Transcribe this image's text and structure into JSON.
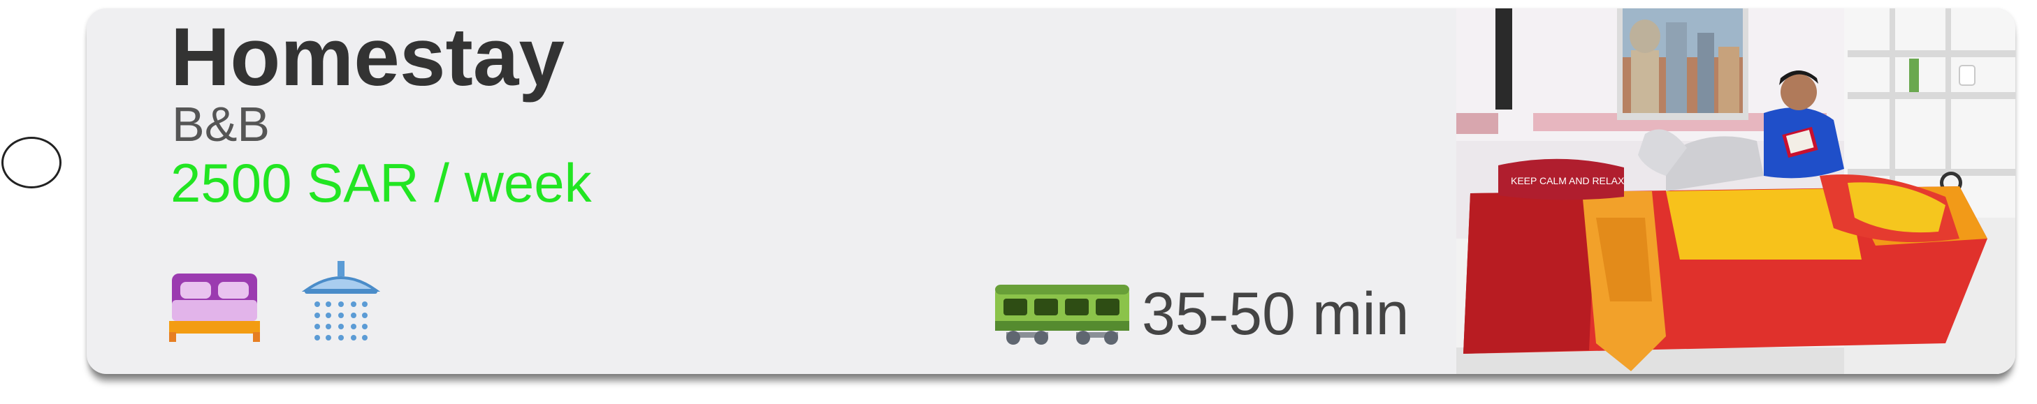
{
  "listing": {
    "title": "Homestay",
    "type": "B&B",
    "price": "2500 SAR / week",
    "commute": {
      "time": "35-50 min",
      "mode_icon": "train-icon"
    },
    "amenities": [
      {
        "icon": "bed-icon"
      },
      {
        "icon": "shower-icon"
      }
    ],
    "photo": {
      "icon": "room-photo",
      "pillow_text": "KEEP CALM AND RELAX"
    }
  },
  "colors": {
    "price": "#22e522",
    "card_bg": "#efeff1",
    "title": "#333333"
  }
}
